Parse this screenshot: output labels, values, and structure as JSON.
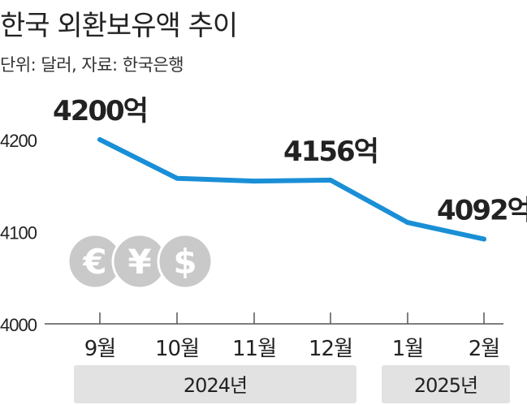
{
  "title": "한국 외환보유액 추이",
  "subtitle": "단위: 달러, 자료: 한국은행",
  "icons": [
    {
      "name": "euro-icon",
      "glyph": "€"
    },
    {
      "name": "yen-icon",
      "glyph": "¥"
    },
    {
      "name": "dollar-icon",
      "glyph": "$"
    }
  ],
  "colors": {
    "line": "#1a8fd6",
    "axis": "#555555",
    "text": "#222222",
    "group_box": "#e2e2e2",
    "icon": "#c9c9c9"
  },
  "chart_data": {
    "type": "line",
    "title": "한국 외환보유액 추이",
    "subtitle": "단위: 달러, 자료: 한국은행",
    "categories": [
      "9월",
      "10월",
      "11월",
      "12월",
      "1월",
      "2월"
    ],
    "values": [
      4200,
      4158,
      4155,
      4156,
      4110,
      4092
    ],
    "y_ticks": [
      "4000",
      "4100",
      "4200"
    ],
    "ylim": [
      4000,
      4200
    ],
    "grid": false,
    "annotations": [
      {
        "index": 0,
        "text": "4200억"
      },
      {
        "index": 3,
        "text": "4156억"
      },
      {
        "index": 5,
        "text": "4092억"
      }
    ],
    "groups": [
      {
        "label": "2024년",
        "start": 0,
        "end": 3
      },
      {
        "label": "2025년",
        "start": 4,
        "end": 5
      }
    ]
  }
}
